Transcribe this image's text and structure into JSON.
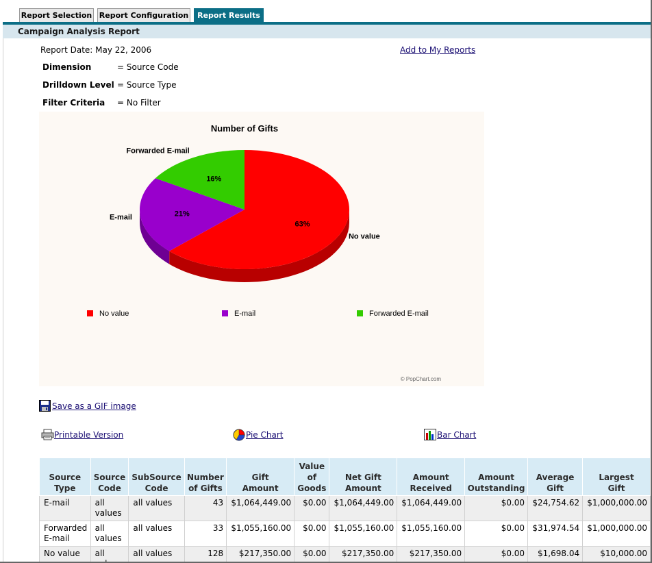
{
  "tabs": [
    {
      "label": "Report Selection"
    },
    {
      "label": "Report Configuration"
    },
    {
      "label": "Report Results"
    }
  ],
  "report_title": "Campaign Analysis Report",
  "report_date": "Report Date: May 22, 2006",
  "add_link": "Add to My Reports",
  "params": [
    {
      "label": "Dimension",
      "value": "= Source Code"
    },
    {
      "label": "Drilldown Level",
      "value": "= Source Type"
    },
    {
      "label": "Filter Criteria",
      "value": "= No Filter"
    }
  ],
  "chart_data": {
    "type": "pie",
    "title": "Number of Gifts",
    "categories": [
      "No value",
      "E-mail",
      "Forwarded E-mail"
    ],
    "values": [
      128,
      43,
      33
    ],
    "percent_labels": [
      "63%",
      "21%",
      "16%"
    ],
    "colors": [
      "#ff0000",
      "#9900cc",
      "#33cc00"
    ],
    "legend_placement": "bottom",
    "credit": "© PopChart.com"
  },
  "links": {
    "save_gif": "Save as a GIF image",
    "printable": "Printable Version",
    "pie_chart": "Pie Chart",
    "bar_chart": "Bar Chart"
  },
  "table": {
    "headers": [
      [
        "Source",
        "Type"
      ],
      [
        "Source",
        "Code"
      ],
      [
        "SubSource",
        "Code"
      ],
      [
        "Number",
        "of Gifts"
      ],
      [
        "Gift",
        "Amount"
      ],
      [
        "Value",
        "of",
        "Goods"
      ],
      [
        "Net Gift",
        "Amount"
      ],
      [
        "Amount",
        "Received"
      ],
      [
        "Amount",
        "Outstanding"
      ],
      [
        "Average",
        "Gift"
      ],
      [
        "Largest",
        "Gift"
      ]
    ],
    "rows": [
      [
        [
          "E-mail"
        ],
        [
          "all",
          "values"
        ],
        [
          "all values"
        ],
        "43",
        "$1,064,449.00",
        "$0.00",
        "$1,064,449.00",
        "$1,064,449.00",
        "$0.00",
        "$24,754.62",
        "$1,000,000.00"
      ],
      [
        [
          "Forwarded",
          "E-mail"
        ],
        [
          "all",
          "values"
        ],
        [
          "all values"
        ],
        "33",
        "$1,055,160.00",
        "$0.00",
        "$1,055,160.00",
        "$1,055,160.00",
        "$0.00",
        "$31,974.54",
        "$1,000,000.00"
      ],
      [
        [
          "No value"
        ],
        [
          "all",
          "values"
        ],
        [
          "all values"
        ],
        "128",
        "$217,350.00",
        "$0.00",
        "$217,350.00",
        "$217,350.00",
        "$0.00",
        "$1,698.04",
        "$10,000.00"
      ]
    ]
  }
}
